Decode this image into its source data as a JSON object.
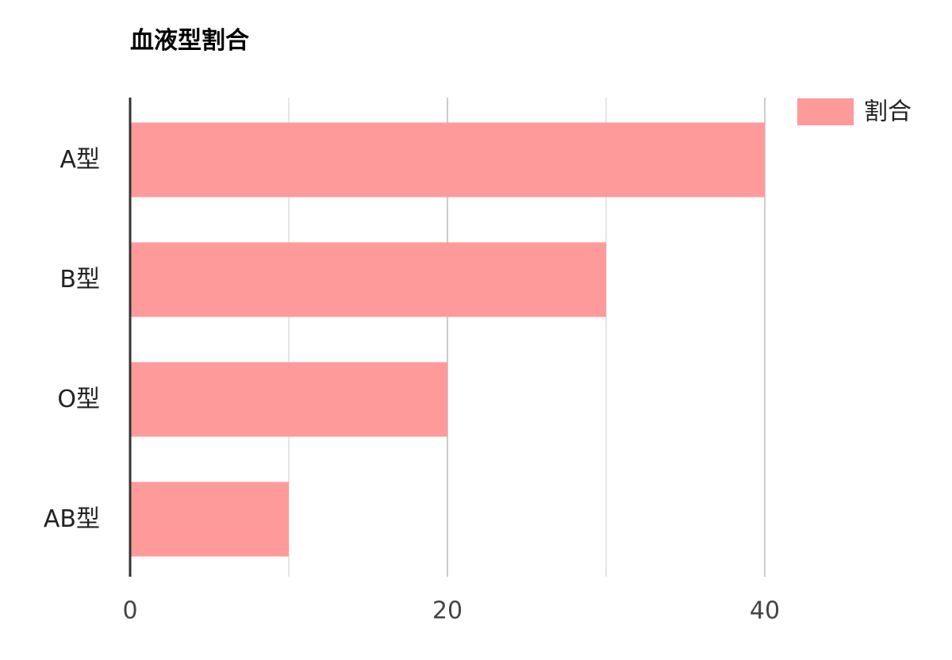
{
  "chart_data": {
    "type": "bar",
    "orientation": "horizontal",
    "title": "血液型割合",
    "categories": [
      "A型",
      "B型",
      "O型",
      "AB型"
    ],
    "series": [
      {
        "name": "割合",
        "values": [
          40,
          30,
          20,
          10
        ]
      }
    ],
    "xlim": [
      0,
      50
    ],
    "x_ticks": [
      0,
      20,
      40
    ],
    "x_tick_labels": [
      "0",
      "20",
      "40"
    ],
    "minor_gridlines": [
      10,
      30
    ],
    "grid": true,
    "legend": "top-right",
    "colors": {
      "bar": "#ff9a9a",
      "axis": "#333333",
      "grid_major": "#cccccc",
      "grid_minor": "#e6e6e6"
    }
  }
}
